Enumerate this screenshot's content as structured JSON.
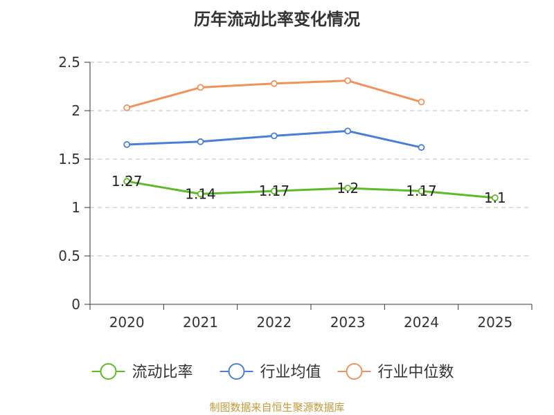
{
  "title": "历年流动比率变化情况",
  "source": "制图数据来自恒生聚源数据库",
  "chart_data": {
    "type": "line",
    "title": "历年流动比率变化情况",
    "categories": [
      "2020",
      "2021",
      "2022",
      "2023",
      "2024",
      "2025"
    ],
    "ylim": [
      0,
      2.5
    ],
    "yticks": [
      "0",
      "0.5",
      "1",
      "1.5",
      "2",
      "2.5"
    ],
    "grid": true,
    "legend_position": "bottom",
    "series": [
      {
        "name": "流动比率",
        "color": "#5dbb27",
        "values": [
          1.27,
          1.14,
          1.17,
          1.2,
          1.17,
          1.1
        ],
        "labels": [
          "1.27",
          "1.14",
          "1.17",
          "1.2",
          "1.17",
          "1.1"
        ]
      },
      {
        "name": "行业均值",
        "color": "#4a7fd9",
        "values": [
          1.65,
          1.68,
          1.74,
          1.79,
          1.62,
          null
        ]
      },
      {
        "name": "行业中位数",
        "color": "#f0935a",
        "values": [
          2.03,
          2.24,
          2.28,
          2.31,
          2.09,
          null
        ]
      }
    ]
  }
}
